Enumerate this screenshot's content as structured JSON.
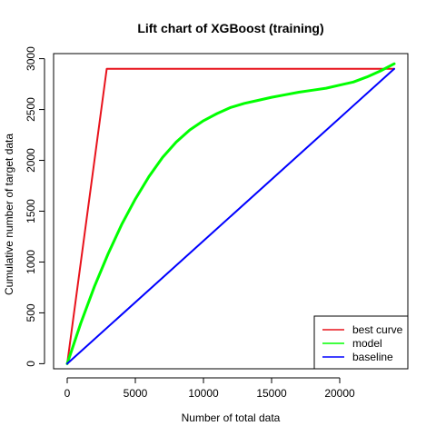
{
  "chart_data": {
    "type": "line",
    "title": "Lift chart of XGBoost (training)",
    "xlabel": "Number of total data",
    "ylabel": "Cumulative number of target data",
    "xlim": [
      -1000,
      25000
    ],
    "ylim": [
      -50,
      3050
    ],
    "xticks": [
      0,
      5000,
      10000,
      15000,
      20000
    ],
    "yticks": [
      0,
      500,
      1000,
      1500,
      2000,
      2500,
      3000
    ],
    "legend": {
      "placement": "bottom-right"
    },
    "series": [
      {
        "name": "best curve",
        "color": "#e8131c",
        "x": [
          0,
          2900,
          24000
        ],
        "y": [
          0,
          2900,
          2900
        ]
      },
      {
        "name": "model",
        "color": "#00ff00",
        "x": [
          0,
          1000,
          2000,
          3000,
          4000,
          5000,
          6000,
          7000,
          8000,
          9000,
          10000,
          11000,
          12000,
          13000,
          14000,
          15000,
          16000,
          17000,
          18000,
          19000,
          20000,
          21000,
          22000,
          23000,
          24000
        ],
        "y": [
          0,
          400,
          760,
          1080,
          1370,
          1620,
          1840,
          2030,
          2180,
          2300,
          2390,
          2460,
          2520,
          2560,
          2590,
          2620,
          2645,
          2670,
          2690,
          2710,
          2740,
          2770,
          2820,
          2880,
          2950
        ]
      },
      {
        "name": "baseline",
        "color": "#0000ff",
        "x": [
          0,
          24000
        ],
        "y": [
          0,
          2900
        ]
      }
    ]
  }
}
